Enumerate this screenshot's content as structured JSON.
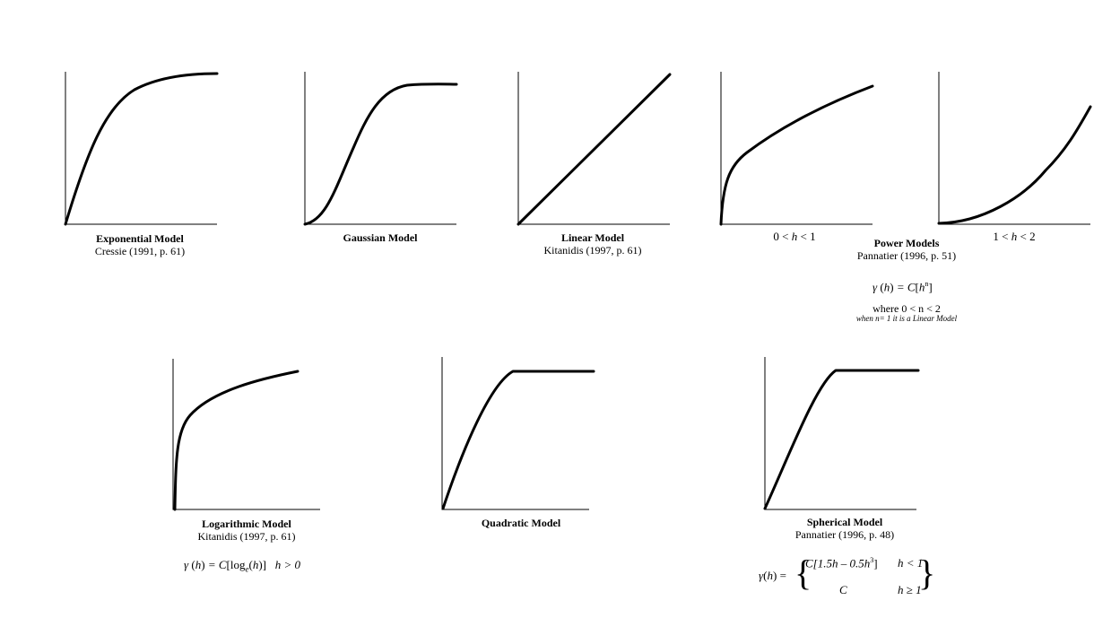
{
  "models": [
    {
      "id": "exponential",
      "title": "Exponential Model",
      "citation": "Cressie (1991, p. 61)"
    },
    {
      "id": "gaussian",
      "title": "Gaussian Model",
      "citation": ""
    },
    {
      "id": "linear",
      "title": "Linear Model",
      "citation": "Kitanidis (1997, p. 61)"
    },
    {
      "id": "power",
      "title": "Power Models",
      "citation": "Pannatier (1996, p. 51)"
    },
    {
      "id": "logarithmic",
      "title": "Logarithmic Model",
      "citation": "Kitanidis (1997, p. 61)"
    },
    {
      "id": "quadratic",
      "title": "Quadratic Model",
      "citation": ""
    },
    {
      "id": "spherical",
      "title": "Spherical Model",
      "citation": "Pannatier (1996, p. 48)"
    }
  ],
  "power": {
    "cond_low": {
      "a": "0 <",
      "var": "h",
      "b": "< 1"
    },
    "cond_high": {
      "a": "1 <",
      "var": "h",
      "b": "< 2"
    },
    "eq": {
      "gamma": "γ",
      "h": "h",
      "eqC": "= C",
      "exp": "n"
    },
    "where": "where 0 < n < 2",
    "note": "when n= 1 it is a Linear Model"
  },
  "logarithmic": {
    "eq": {
      "gamma": "γ",
      "h": "h",
      "eqC": "= C",
      "log": "log",
      "sub": "e",
      "h2": "h",
      "cond": "h > 0"
    }
  },
  "spherical": {
    "eq": {
      "gamma": "γ",
      "h": "h",
      "eq": "=",
      "row1": "C[1.5h – 0.5h",
      "cube": "3",
      "row1end": "]",
      "cond1": "h < 1",
      "row2": "C",
      "cond2": "h ≥ 1"
    }
  }
}
